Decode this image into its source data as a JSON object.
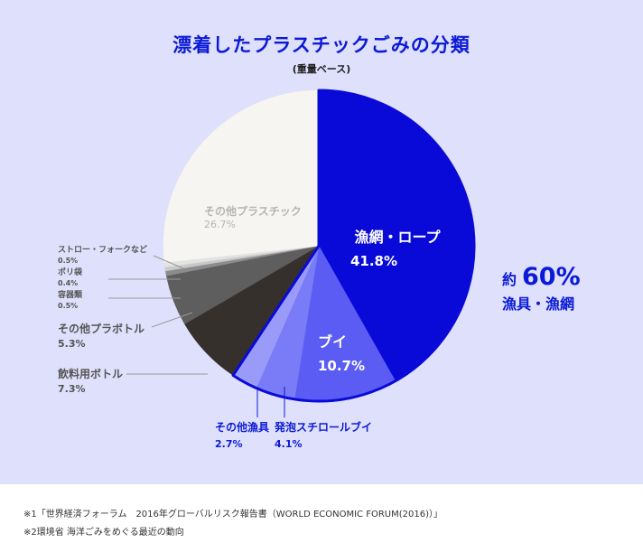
{
  "title": "漂着したプラスチックごみの分類",
  "subtitle": "(重量ベース)",
  "chart_data": {
    "type": "pie",
    "slices": [
      {
        "label": "漁網・ロープ",
        "display": "41.8%",
        "value": 41.8,
        "color": "#0a0ad8",
        "text_color": "#ffffff"
      },
      {
        "label": "ブイ",
        "display": "10.7%",
        "value": 10.7,
        "color": "#5b5cf4",
        "text_color": "#ffffff"
      },
      {
        "label": "発泡スチロールブイ",
        "display": "4.1%",
        "value": 4.1,
        "color": "#7a7bf7",
        "text_color": "#0b1ad6"
      },
      {
        "label": "その他漁具",
        "display": "2.7%",
        "value": 2.7,
        "color": "#9a9bf9",
        "text_color": "#0b1ad6"
      },
      {
        "label": "飲料用ボトル",
        "display": "7.3%",
        "value": 7.3,
        "color": "#36302d",
        "text_color": "#555555"
      },
      {
        "label": "その他プラボトル",
        "display": "5.3%",
        "value": 5.3,
        "color": "#5e5e5e",
        "text_color": "#555555"
      },
      {
        "label": "容器類",
        "display": "0.5%",
        "value": 0.5,
        "color": "#8c8c8c",
        "text_color": "#555555"
      },
      {
        "label": "ポリ袋",
        "display": "0.4%",
        "value": 0.4,
        "color": "#c8c8c8",
        "text_color": "#555555"
      },
      {
        "label": "ストロー・フォークなど",
        "display": "0.5%",
        "value": 0.5,
        "color": "#e3e3e3",
        "text_color": "#555555"
      },
      {
        "label": "その他プラスチック",
        "display": "26.7%",
        "value": 26.7,
        "color": "#f7f5f1",
        "text_color": "#b5b5b5"
      }
    ],
    "annotation": {
      "prefix": "約",
      "value": "60%",
      "label": "漁具・漁網"
    }
  },
  "footnotes": [
    "※1「世界経済フォーラム　2016年グローバルリスク報告書（WORLD ECONOMIC FORUM(2016)）」",
    "※2環境省 海洋ごみをめぐる最近の動向"
  ]
}
